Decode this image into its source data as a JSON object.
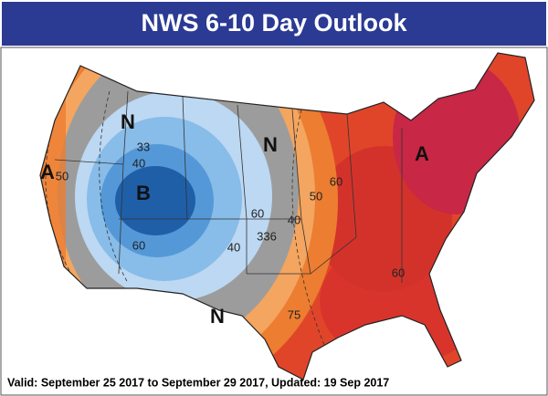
{
  "header": {
    "title": "NWS 6-10 Day Outlook"
  },
  "map": {
    "labels": [
      "N",
      "33",
      "40",
      "A",
      "50",
      "B",
      "60",
      "N",
      "60",
      "40",
      "336",
      "N",
      "50",
      "60",
      "40",
      "A",
      "60",
      "75"
    ]
  },
  "footer": {
    "text": "Valid: September 25 2017 to September 29 2017, Updated: 19 Sep 2017"
  }
}
